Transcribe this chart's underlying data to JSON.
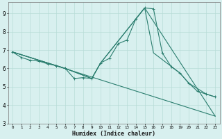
{
  "xlabel": "Humidex (Indice chaleur)",
  "bg_color": "#d8f0ef",
  "grid_color": "#b8dcd8",
  "line_color": "#2a7d6e",
  "xlim": [
    -0.5,
    23.5
  ],
  "ylim": [
    3,
    9.6
  ],
  "yticks": [
    3,
    4,
    5,
    6,
    7,
    8,
    9
  ],
  "xticks": [
    0,
    1,
    2,
    3,
    4,
    5,
    6,
    7,
    8,
    9,
    10,
    11,
    12,
    13,
    14,
    15,
    16,
    17,
    18,
    19,
    20,
    21,
    22,
    23
  ],
  "series": [
    {
      "x": [
        0,
        1,
        2,
        3,
        4,
        5,
        6,
        7,
        8,
        9,
        10,
        11,
        12,
        13,
        14,
        15,
        16,
        17,
        18,
        19,
        20,
        21,
        22,
        23
      ],
      "y": [
        6.9,
        6.6,
        6.45,
        6.4,
        6.25,
        6.15,
        6.0,
        5.45,
        5.5,
        5.45,
        6.3,
        6.55,
        7.35,
        7.55,
        8.7,
        9.3,
        9.25,
        6.85,
        6.1,
        5.75,
        5.2,
        4.75,
        4.6,
        4.45
      ],
      "marker": true
    },
    {
      "x": [
        0,
        6,
        9,
        10,
        15,
        16,
        19,
        20,
        22,
        23
      ],
      "y": [
        6.9,
        6.0,
        5.45,
        6.3,
        9.3,
        6.85,
        5.75,
        5.2,
        4.6,
        4.45
      ],
      "marker": false
    },
    {
      "x": [
        0,
        6,
        9,
        10,
        15,
        23
      ],
      "y": [
        6.9,
        6.0,
        5.45,
        6.3,
        9.3,
        3.4
      ],
      "marker": false
    },
    {
      "x": [
        0,
        23
      ],
      "y": [
        6.9,
        3.4
      ],
      "marker": false
    }
  ]
}
